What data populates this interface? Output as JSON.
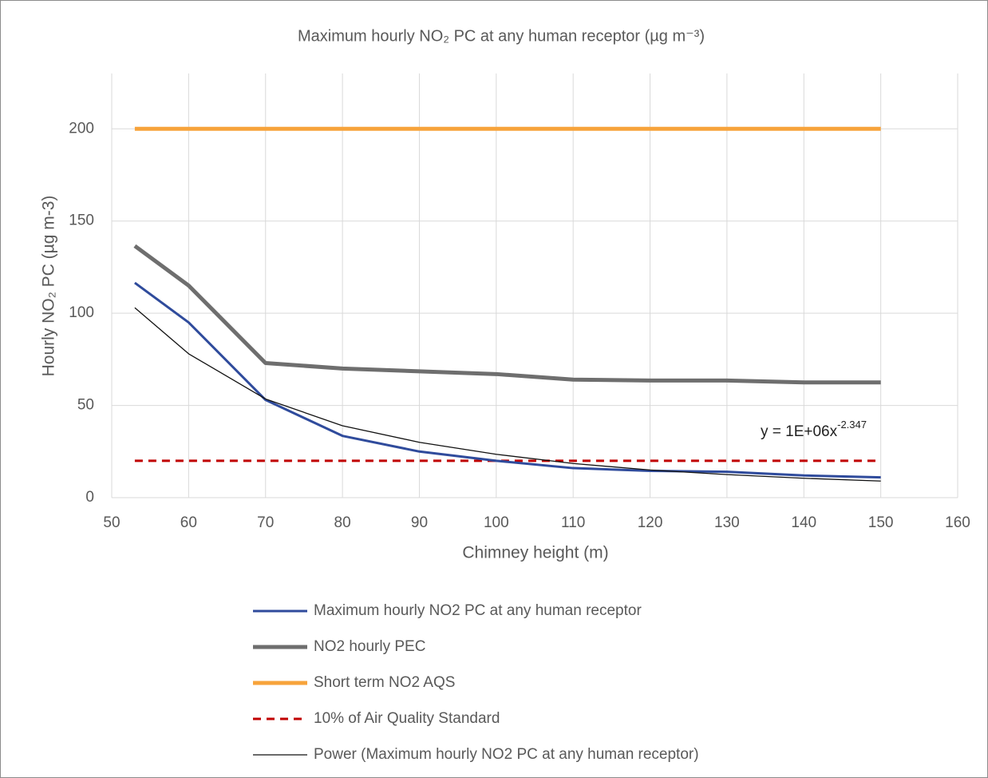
{
  "chart_data": {
    "type": "line",
    "title": "Maximum hourly NO₂ PC at any human receptor (µg m⁻³)",
    "x_label": "Chimney height (m)",
    "y_label": "Hourly NO₂ PC (µg m-3)",
    "annotation": {
      "text": "y = 1E+06x",
      "superscript": "-2.347"
    },
    "x": [
      53,
      60,
      70,
      80,
      90,
      100,
      110,
      120,
      130,
      140,
      150
    ],
    "xlim": [
      50,
      160
    ],
    "xticks": [
      50,
      60,
      70,
      80,
      90,
      100,
      110,
      120,
      130,
      140,
      150,
      160
    ],
    "ylim": [
      0,
      230
    ],
    "yticks": [
      0,
      50,
      100,
      150,
      200
    ],
    "grid": true,
    "legend": "bottom",
    "series": [
      {
        "name": "Maximum hourly NO2 PC at any human receptor",
        "color": "#2f4b9c",
        "line_width": 3,
        "dashed": false,
        "values": [
          116.5,
          95,
          53,
          33.5,
          25,
          20,
          16,
          14.5,
          14,
          12,
          11
        ]
      },
      {
        "name": "NO2 hourly PEC",
        "color": "#6e6e6e",
        "line_width": 5,
        "dashed": false,
        "values": [
          136.5,
          115,
          73,
          70,
          68.5,
          67,
          64,
          63.5,
          63.5,
          62.5,
          62.5
        ]
      },
      {
        "name": "Short term NO2 AQS",
        "color": "#f7a33b",
        "line_width": 5,
        "dashed": false,
        "values": [
          200,
          200,
          200,
          200,
          200,
          200,
          200,
          200,
          200,
          200,
          200
        ]
      },
      {
        "name": "10% of Air Quality Standard",
        "color": "#c00000",
        "line_width": 3,
        "dashed": true,
        "values": [
          20,
          20,
          20,
          20,
          20,
          20,
          20,
          20,
          20,
          20,
          20
        ]
      },
      {
        "name": "Power (Maximum hourly NO2 PC at any human receptor)",
        "color": "#111111",
        "line_width": 1.3,
        "dashed": false,
        "values": [
          103,
          78,
          53.5,
          39,
          30,
          23.5,
          18.5,
          15,
          12.5,
          10.5,
          9
        ]
      }
    ]
  }
}
